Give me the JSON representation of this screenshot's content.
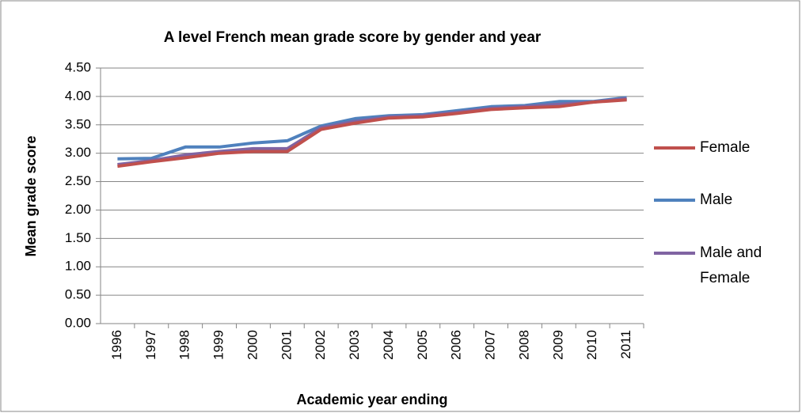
{
  "chart_data": {
    "type": "line",
    "title": "A level French mean grade score by gender and year",
    "x_label": "Academic year ending",
    "y_label": "Mean grade score",
    "categories": [
      "1996",
      "1997",
      "1998",
      "1999",
      "2000",
      "2001",
      "2002",
      "2003",
      "2004",
      "2005",
      "2006",
      "2007",
      "2008",
      "2009",
      "2010",
      "2011"
    ],
    "series": [
      {
        "name": "Female",
        "color": "#c0504d",
        "values": [
          2.77,
          2.85,
          2.92,
          3.0,
          3.03,
          3.03,
          3.42,
          3.53,
          3.62,
          3.64,
          3.7,
          3.77,
          3.8,
          3.82,
          3.9,
          3.94
        ]
      },
      {
        "name": "Male",
        "color": "#4f81bd",
        "values": [
          2.9,
          2.91,
          3.11,
          3.11,
          3.18,
          3.22,
          3.48,
          3.61,
          3.66,
          3.68,
          3.75,
          3.82,
          3.84,
          3.91,
          3.91,
          3.98
        ]
      },
      {
        "name": "Male and Female",
        "color": "#8064a2",
        "values": [
          2.8,
          2.87,
          2.97,
          3.03,
          3.08,
          3.08,
          3.45,
          3.56,
          3.64,
          3.66,
          3.72,
          3.79,
          3.82,
          3.86,
          3.9,
          3.96
        ]
      }
    ],
    "ylim": [
      0,
      4.5
    ],
    "yticks": [
      {
        "value": 0,
        "label": "0.00"
      },
      {
        "value": 0.5,
        "label": "0.50"
      },
      {
        "value": 1,
        "label": "1.00"
      },
      {
        "value": 1.5,
        "label": "1.50"
      },
      {
        "value": 2,
        "label": "2.00"
      },
      {
        "value": 2.5,
        "label": "2.50"
      },
      {
        "value": 3,
        "label": "3.00"
      },
      {
        "value": 3.5,
        "label": "3.50"
      },
      {
        "value": 4,
        "label": "4.00"
      },
      {
        "value": 4.5,
        "label": "4.50"
      }
    ],
    "grid": true,
    "legend": "right"
  }
}
